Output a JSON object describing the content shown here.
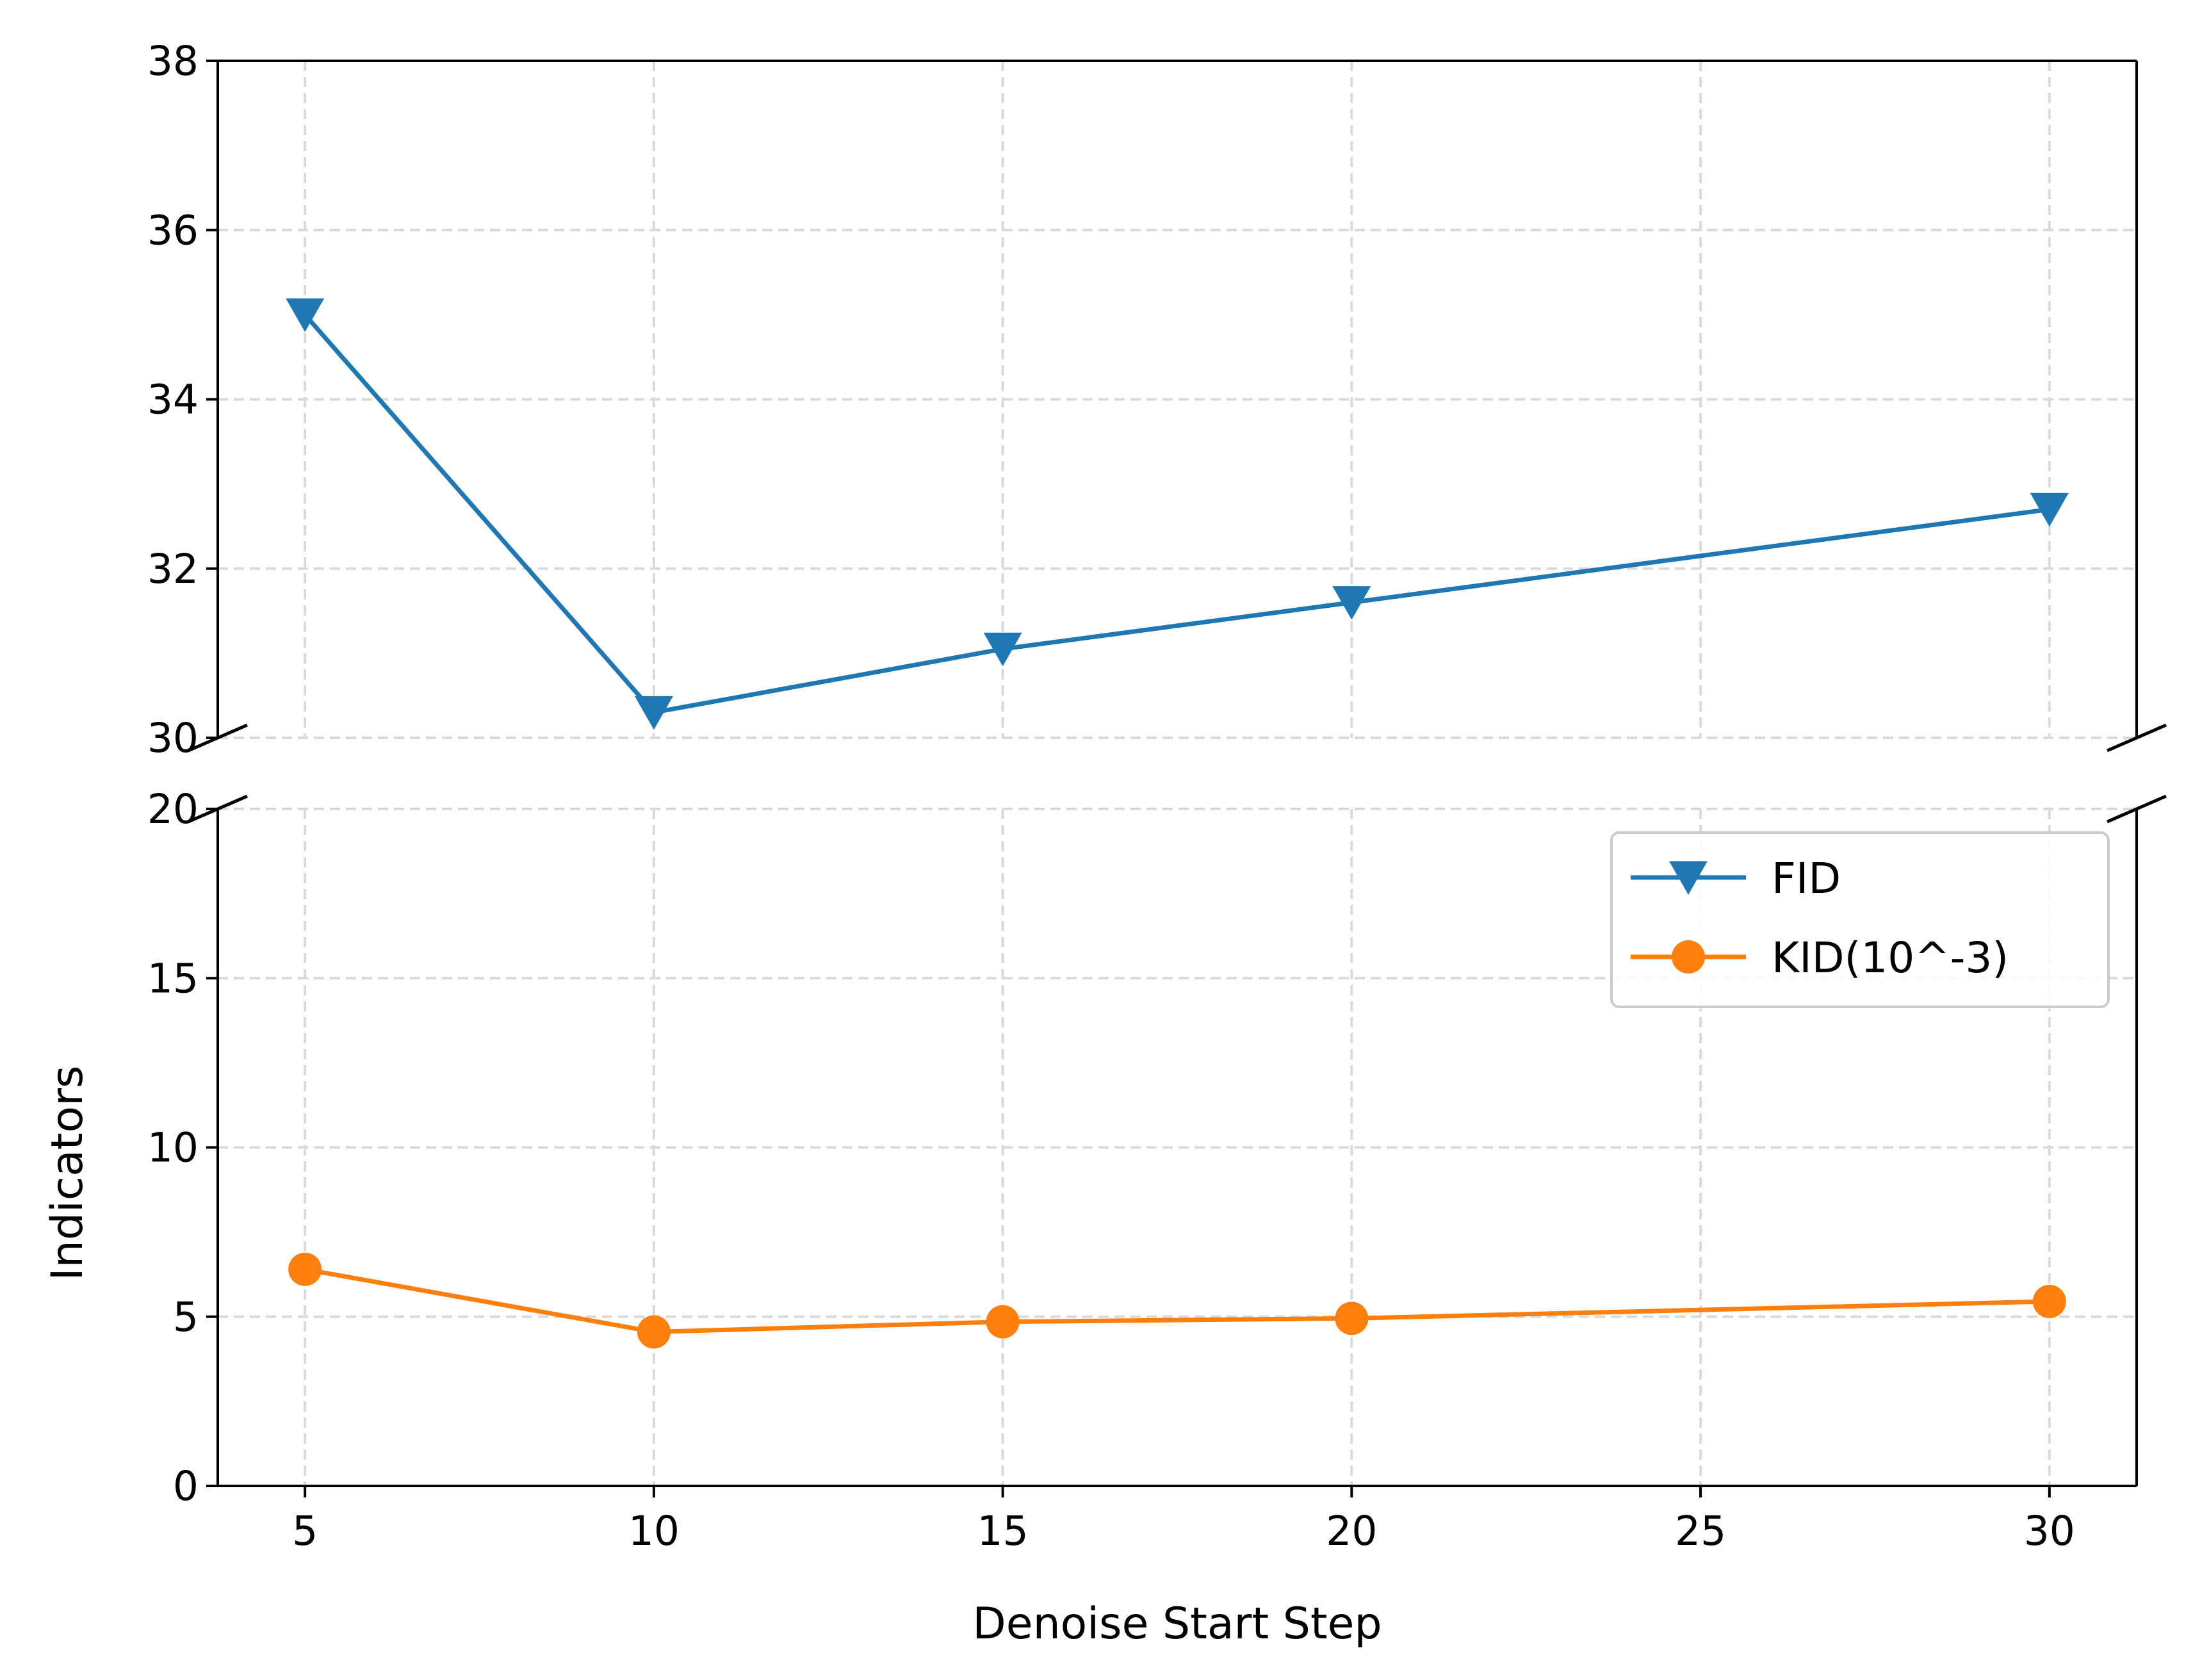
{
  "chart_data": {
    "type": "line",
    "broken_y_axis": true,
    "xlabel": "Denoise Start Step",
    "ylabel": "Indicators",
    "x": [
      5,
      10,
      15,
      20,
      30
    ],
    "xticks": [
      5,
      10,
      15,
      20,
      25,
      30
    ],
    "xlim": [
      3.75,
      31.25
    ],
    "upper_panel": {
      "ylim": [
        30,
        38
      ],
      "yticks": [
        30,
        32,
        34,
        36,
        38
      ]
    },
    "lower_panel": {
      "ylim": [
        0,
        20
      ],
      "yticks": [
        0,
        5,
        10,
        15,
        20
      ]
    },
    "grid": true,
    "legend_position": "upper-right of lower panel",
    "series": [
      {
        "name": "FID",
        "panel": "upper",
        "marker": "triangle-down",
        "color": "#1f77b4",
        "values": [
          35.0,
          30.3,
          31.05,
          31.6,
          32.7
        ]
      },
      {
        "name": "KID(10^-3)",
        "panel": "lower",
        "marker": "circle",
        "color": "#ff7f0e",
        "values": [
          6.4,
          4.55,
          4.85,
          4.95,
          5.45
        ]
      }
    ]
  }
}
